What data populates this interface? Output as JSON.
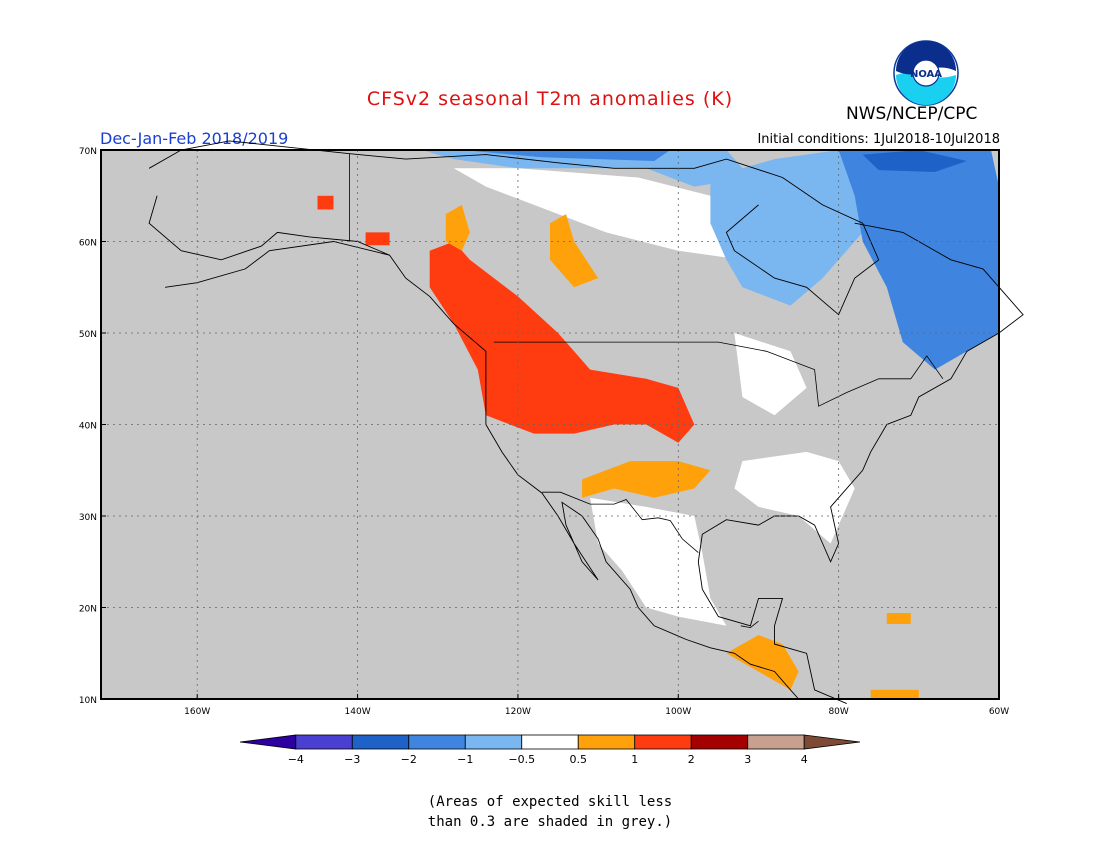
{
  "header": {
    "title": "CFSv2 seasonal T2m anomalies (K)",
    "agency": "NWS/NCEP/CPC",
    "logo_text": "NOAA",
    "period": "Dec-Jan-Feb 2018/2019",
    "initial_conditions": "Initial conditions: 1Jul2018-10Jul2018"
  },
  "map": {
    "lon_range": [
      -172,
      -60
    ],
    "lat_range": [
      10,
      70
    ],
    "background_color": "#c8c8c8",
    "lat_ticks": [
      {
        "value": 10,
        "label": "10N"
      },
      {
        "value": 20,
        "label": "20N"
      },
      {
        "value": 30,
        "label": "30N"
      },
      {
        "value": 40,
        "label": "40N"
      },
      {
        "value": 50,
        "label": "50N"
      },
      {
        "value": 60,
        "label": "60N"
      },
      {
        "value": 70,
        "label": "70N"
      }
    ],
    "lon_ticks": [
      {
        "value": -160,
        "label": "160W"
      },
      {
        "value": -140,
        "label": "140W"
      },
      {
        "value": -120,
        "label": "120W"
      },
      {
        "value": -100,
        "label": "100W"
      },
      {
        "value": -80,
        "label": "80W"
      },
      {
        "value": -60,
        "label": "60W"
      }
    ],
    "anomaly_regions": [
      {
        "name": "arctic-north-light",
        "color": "#7ab6f0",
        "points": [
          [
            -132,
            70
          ],
          [
            -94,
            70
          ],
          [
            -91,
            67
          ],
          [
            -98,
            66
          ],
          [
            -104,
            68
          ],
          [
            -120,
            68
          ],
          [
            -128,
            69
          ]
        ]
      },
      {
        "name": "arctic-blue-strip",
        "color": "#3f85e0",
        "points": [
          [
            -127,
            70
          ],
          [
            -101,
            70
          ],
          [
            -103,
            68.8
          ],
          [
            -117,
            69.2
          ]
        ]
      },
      {
        "name": "arctic-north-white",
        "color": "#ffffff",
        "points": [
          [
            -128,
            68
          ],
          [
            -120,
            68
          ],
          [
            -105,
            67
          ],
          [
            -96,
            65
          ],
          [
            -90,
            61
          ],
          [
            -92,
            58
          ],
          [
            -100,
            59
          ],
          [
            -109,
            61
          ],
          [
            -118,
            64
          ],
          [
            -124,
            66
          ]
        ]
      },
      {
        "name": "hudson-light-blue",
        "color": "#7ab6f0",
        "points": [
          [
            -96,
            67
          ],
          [
            -88,
            69
          ],
          [
            -80,
            70
          ],
          [
            -66,
            70
          ],
          [
            -70,
            66
          ],
          [
            -76,
            62
          ],
          [
            -82,
            56
          ],
          [
            -86,
            53
          ],
          [
            -92,
            55
          ],
          [
            -94,
            58
          ],
          [
            -96,
            62
          ]
        ]
      },
      {
        "name": "ne-canada-blue",
        "color": "#3f85e0",
        "points": [
          [
            -80,
            70
          ],
          [
            -61,
            70
          ],
          [
            -60,
            66
          ],
          [
            -60,
            57
          ],
          [
            -60,
            50
          ],
          [
            -64,
            48
          ],
          [
            -68,
            46
          ],
          [
            -72,
            49
          ],
          [
            -74,
            55
          ],
          [
            -77,
            60
          ],
          [
            -78,
            65
          ]
        ]
      },
      {
        "name": "baffin-dark",
        "color": "#1e62c8",
        "points": [
          [
            -77,
            69.5
          ],
          [
            -70,
            70
          ],
          [
            -64,
            68.8
          ],
          [
            -68,
            67.6
          ],
          [
            -75,
            67.8
          ]
        ]
      },
      {
        "name": "south-white",
        "color": "#ffffff",
        "points": [
          [
            -111,
            32
          ],
          [
            -104,
            31
          ],
          [
            -98,
            30
          ],
          [
            -97,
            26
          ],
          [
            -96,
            21
          ],
          [
            -94,
            18
          ],
          [
            -100,
            19
          ],
          [
            -104,
            20
          ],
          [
            -107,
            24
          ],
          [
            -110,
            27
          ]
        ]
      },
      {
        "name": "southeast-white",
        "color": "#ffffff",
        "points": [
          [
            -92,
            36
          ],
          [
            -84,
            37
          ],
          [
            -80,
            36
          ],
          [
            -78,
            33
          ],
          [
            -81,
            27
          ],
          [
            -85,
            30
          ],
          [
            -90,
            31
          ],
          [
            -93,
            33
          ]
        ]
      },
      {
        "name": "great-lakes-white",
        "color": "#ffffff",
        "points": [
          [
            -93,
            50
          ],
          [
            -86,
            48
          ],
          [
            -84,
            44
          ],
          [
            -88,
            41
          ],
          [
            -92,
            43
          ]
        ]
      },
      {
        "name": "west-red",
        "color": "#ff3b10",
        "points": [
          [
            -128,
            60
          ],
          [
            -126,
            58
          ],
          [
            -120,
            54
          ],
          [
            -115,
            50
          ],
          [
            -113,
            48
          ],
          [
            -111,
            46
          ],
          [
            -104,
            45
          ],
          [
            -100,
            44
          ],
          [
            -98,
            40
          ],
          [
            -100,
            38
          ],
          [
            -102,
            39
          ],
          [
            -104,
            40
          ],
          [
            -108,
            40
          ],
          [
            -113,
            39
          ],
          [
            -118,
            39
          ],
          [
            -121,
            40
          ],
          [
            -124,
            41
          ],
          [
            -125,
            46
          ],
          [
            -128,
            51
          ],
          [
            -131,
            55
          ],
          [
            -131,
            59
          ]
        ]
      },
      {
        "name": "alaska-red-a",
        "color": "#ff3b10",
        "points": [
          [
            -139,
            61
          ],
          [
            -136,
            61
          ],
          [
            -136,
            59.6
          ],
          [
            -139,
            59.6
          ]
        ]
      },
      {
        "name": "alaska-red-b",
        "color": "#ff3b10",
        "points": [
          [
            -145,
            65
          ],
          [
            -143,
            65
          ],
          [
            -143,
            63.5
          ],
          [
            -145,
            63.5
          ]
        ]
      },
      {
        "name": "plains-orange",
        "color": "#ffa10a",
        "points": [
          [
            -106,
            36
          ],
          [
            -100,
            36
          ],
          [
            -96,
            35
          ],
          [
            -98,
            33
          ],
          [
            -103,
            32
          ],
          [
            -108,
            33
          ],
          [
            -112,
            32
          ],
          [
            -112,
            34
          ]
        ]
      },
      {
        "name": "bc-orange",
        "color": "#ffa10a",
        "points": [
          [
            -129,
            63
          ],
          [
            -127,
            64
          ],
          [
            -126,
            61
          ],
          [
            -127,
            59
          ],
          [
            -129,
            60
          ]
        ]
      },
      {
        "name": "alberta-orange",
        "color": "#ffa10a",
        "points": [
          [
            -116,
            62
          ],
          [
            -114,
            63
          ],
          [
            -113,
            60
          ],
          [
            -110,
            56
          ],
          [
            -113,
            55
          ],
          [
            -116,
            58
          ]
        ]
      },
      {
        "name": "central-america-orange",
        "color": "#ffa10a",
        "points": [
          [
            -94,
            15
          ],
          [
            -90,
            17
          ],
          [
            -87,
            16
          ],
          [
            -85,
            13
          ],
          [
            -86,
            11
          ],
          [
            -88,
            12
          ],
          [
            -92,
            14
          ]
        ]
      },
      {
        "name": "venezuela-orange",
        "color": "#ffa10a",
        "points": [
          [
            -76,
            11
          ],
          [
            -70,
            11
          ],
          [
            -70,
            10
          ],
          [
            -76,
            10
          ]
        ]
      },
      {
        "name": "haiti-orange",
        "color": "#ffa10a",
        "points": [
          [
            -74,
            19.4
          ],
          [
            -71,
            19.4
          ],
          [
            -71,
            18.2
          ],
          [
            -74,
            18.2
          ]
        ]
      }
    ],
    "coastlines": [
      [
        [
          -166,
          68
        ],
        [
          -162,
          70
        ],
        [
          -156,
          71
        ],
        [
          -141,
          69.6
        ],
        [
          -134,
          69
        ],
        [
          -124,
          69.5
        ],
        [
          -115,
          68.6
        ],
        [
          -108,
          68
        ],
        [
          -98,
          68
        ],
        [
          -94,
          69
        ],
        [
          -87,
          67
        ],
        [
          -82,
          64
        ],
        [
          -77,
          62
        ],
        [
          -75,
          58
        ],
        [
          -78,
          56
        ],
        [
          -80,
          52
        ],
        [
          -84,
          55
        ],
        [
          -88,
          56
        ],
        [
          -93,
          59
        ],
        [
          -94,
          61
        ],
        [
          -90,
          64
        ]
      ],
      [
        [
          -78,
          62
        ],
        [
          -72,
          61
        ],
        [
          -66,
          58
        ],
        [
          -62,
          57
        ],
        [
          -57,
          52
        ],
        [
          -60,
          50
        ],
        [
          -64,
          48
        ],
        [
          -66,
          45
        ],
        [
          -70,
          43
        ],
        [
          -71,
          41
        ],
        [
          -74,
          40
        ],
        [
          -76,
          37
        ],
        [
          -77,
          35
        ],
        [
          -81,
          31
        ],
        [
          -80,
          27
        ],
        [
          -81,
          25
        ],
        [
          -82,
          27
        ],
        [
          -83,
          29
        ],
        [
          -85,
          30
        ],
        [
          -88,
          30
        ],
        [
          -90,
          29
        ],
        [
          -94,
          29.6
        ],
        [
          -97,
          28
        ],
        [
          -97.5,
          25
        ],
        [
          -97,
          22
        ],
        [
          -95,
          19
        ],
        [
          -91,
          18
        ],
        [
          -90,
          21
        ],
        [
          -87,
          21
        ],
        [
          -88,
          18
        ],
        [
          -88,
          16
        ],
        [
          -84,
          15
        ],
        [
          -83,
          11
        ],
        [
          -79,
          9.5
        ]
      ],
      [
        [
          -165,
          65
        ],
        [
          -166,
          62
        ],
        [
          -162,
          59
        ],
        [
          -157,
          58
        ],
        [
          -152,
          59.5
        ],
        [
          -150,
          61
        ],
        [
          -146,
          60.5
        ],
        [
          -140,
          60
        ],
        [
          -136,
          58.5
        ],
        [
          -134,
          56
        ],
        [
          -131,
          54
        ],
        [
          -128,
          51
        ],
        [
          -124,
          48
        ],
        [
          -124,
          44
        ],
        [
          -124,
          40
        ],
        [
          -122,
          37
        ],
        [
          -120,
          34.5
        ],
        [
          -117,
          32.5
        ],
        [
          -115,
          30
        ],
        [
          -113,
          27
        ],
        [
          -110,
          23
        ],
        [
          -112,
          25
        ],
        [
          -114,
          29
        ],
        [
          -114.5,
          31.5
        ],
        [
          -112,
          30
        ],
        [
          -110,
          27.5
        ],
        [
          -109,
          25
        ],
        [
          -106,
          22
        ],
        [
          -105,
          20
        ],
        [
          -103,
          18
        ],
        [
          -99,
          16.5
        ],
        [
          -96,
          15.6
        ],
        [
          -93,
          15
        ],
        [
          -91,
          13.8
        ],
        [
          -88,
          13
        ],
        [
          -86,
          11
        ],
        [
          -85,
          10
        ]
      ],
      [
        [
          -136,
          58.5
        ],
        [
          -143,
          60
        ],
        [
          -151,
          59
        ],
        [
          -154,
          57
        ],
        [
          -160,
          55.5
        ],
        [
          -164,
          55
        ]
      ]
    ],
    "borders": [
      [
        [
          -123,
          49
        ],
        [
          -95,
          49
        ],
        [
          -89,
          48
        ],
        [
          -83,
          46
        ],
        [
          -82.5,
          42
        ],
        [
          -79,
          43.5
        ],
        [
          -75,
          45
        ],
        [
          -71,
          45
        ],
        [
          -69,
          47.5
        ],
        [
          -67,
          45
        ]
      ],
      [
        [
          -141,
          60
        ],
        [
          -141,
          69.6
        ]
      ],
      [
        [
          -117,
          32.6
        ],
        [
          -114.7,
          32.6
        ],
        [
          -111,
          31.3
        ],
        [
          -108,
          31.3
        ],
        [
          -106.5,
          31.8
        ],
        [
          -104.5,
          29.6
        ],
        [
          -102.5,
          29.8
        ],
        [
          -101,
          29.5
        ],
        [
          -99.5,
          27.5
        ],
        [
          -97.5,
          26
        ]
      ],
      [
        [
          -92.2,
          18
        ],
        [
          -91,
          17.8
        ],
        [
          -90,
          18.5
        ]
      ]
    ]
  },
  "colorbar": {
    "colors": [
      "#2d00a0",
      "#4a3fd0",
      "#1e62c8",
      "#3f85e0",
      "#7ab6f0",
      "#ffffff",
      "#ffa10a",
      "#ff3b10",
      "#a50000",
      "#c7a090",
      "#7d4a35"
    ],
    "labels": [
      "−4",
      "−3",
      "−2",
      "−1",
      "−0.5",
      "0.5",
      "1",
      "2",
      "3",
      "4"
    ]
  },
  "footnote": {
    "line1": "(Areas of expected skill less",
    "line2": "than 0.3 are shaded in grey.)"
  }
}
